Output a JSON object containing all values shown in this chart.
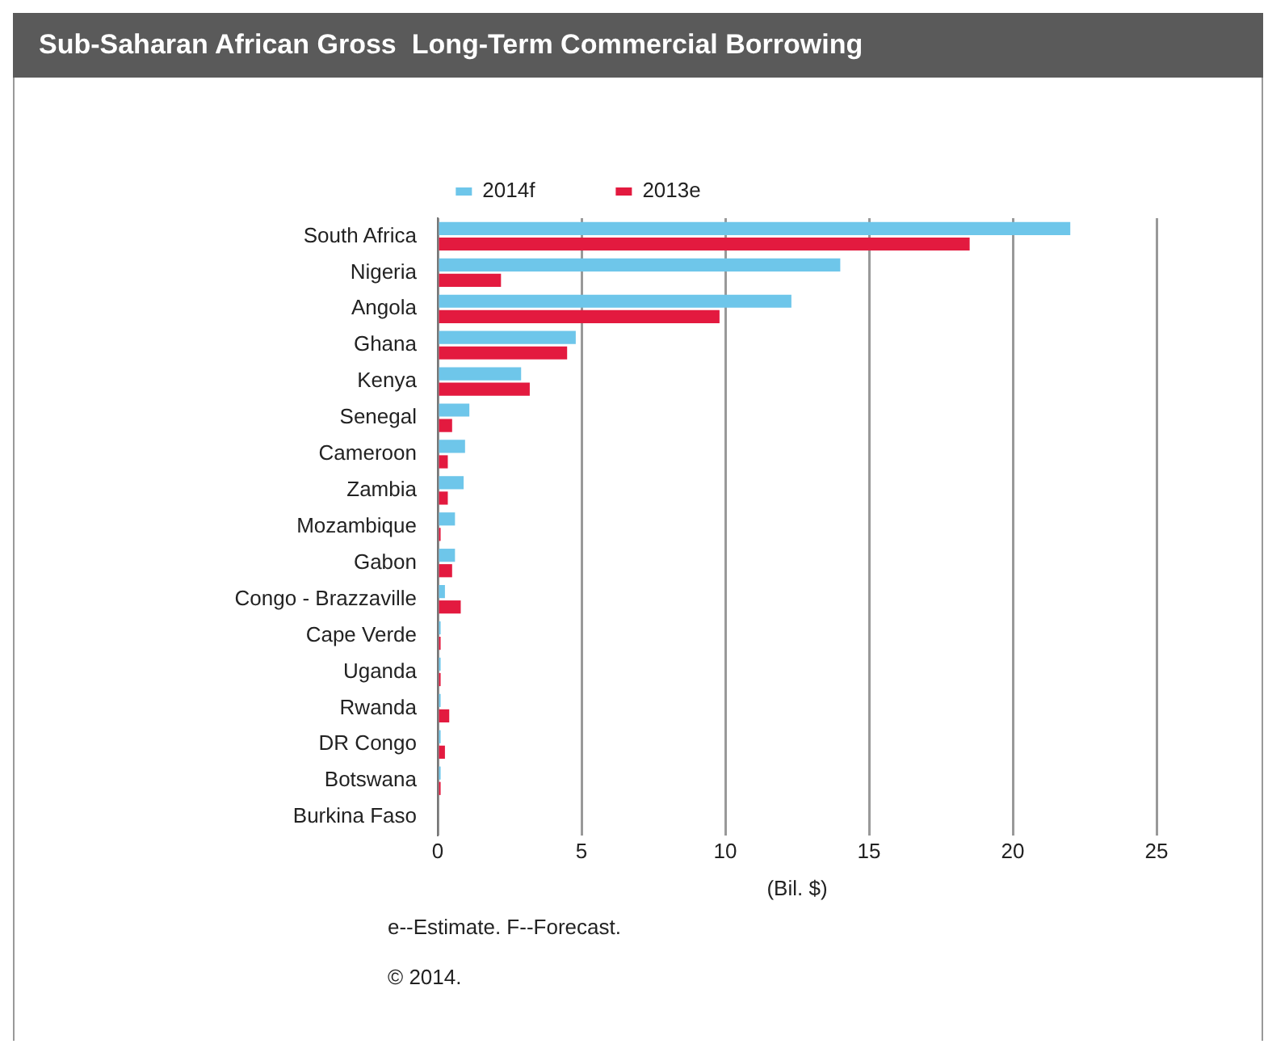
{
  "chart_data": {
    "type": "bar",
    "orientation": "horizontal",
    "title": "Sub-Saharan African Gross  Long-Term Commercial Borrowing",
    "xlabel": "(Bil. $)",
    "categories": [
      "South Africa",
      "Nigeria",
      "Angola",
      "Ghana",
      "Kenya",
      "Senegal",
      "Cameroon",
      "Zambia",
      "Mozambique",
      "Gabon",
      "Congo - Brazzaville",
      "Cape Verde",
      "Uganda",
      "Rwanda",
      "DR Congo",
      "Botswana",
      "Burkina Faso"
    ],
    "series": [
      {
        "name": "2014f",
        "color": "#6ec6ea",
        "values": [
          22.0,
          14.0,
          12.3,
          4.8,
          2.9,
          1.1,
          0.95,
          0.9,
          0.6,
          0.6,
          0.25,
          0.1,
          0.1,
          0.1,
          0.1,
          0.1,
          0
        ]
      },
      {
        "name": "2013e",
        "color": "#e31a3f",
        "values": [
          18.5,
          2.2,
          9.8,
          4.5,
          3.2,
          0.5,
          0.35,
          0.35,
          0.1,
          0.5,
          0.8,
          0.1,
          0.1,
          0.4,
          0.25,
          0.1,
          0
        ]
      }
    ],
    "xlim": [
      0,
      25
    ],
    "xticks": [
      0,
      5,
      10,
      15,
      20,
      25
    ],
    "grid": "x",
    "legend": "top",
    "annotations": [
      "e--Estimate. F--Forecast.",
      "© 2014."
    ]
  }
}
